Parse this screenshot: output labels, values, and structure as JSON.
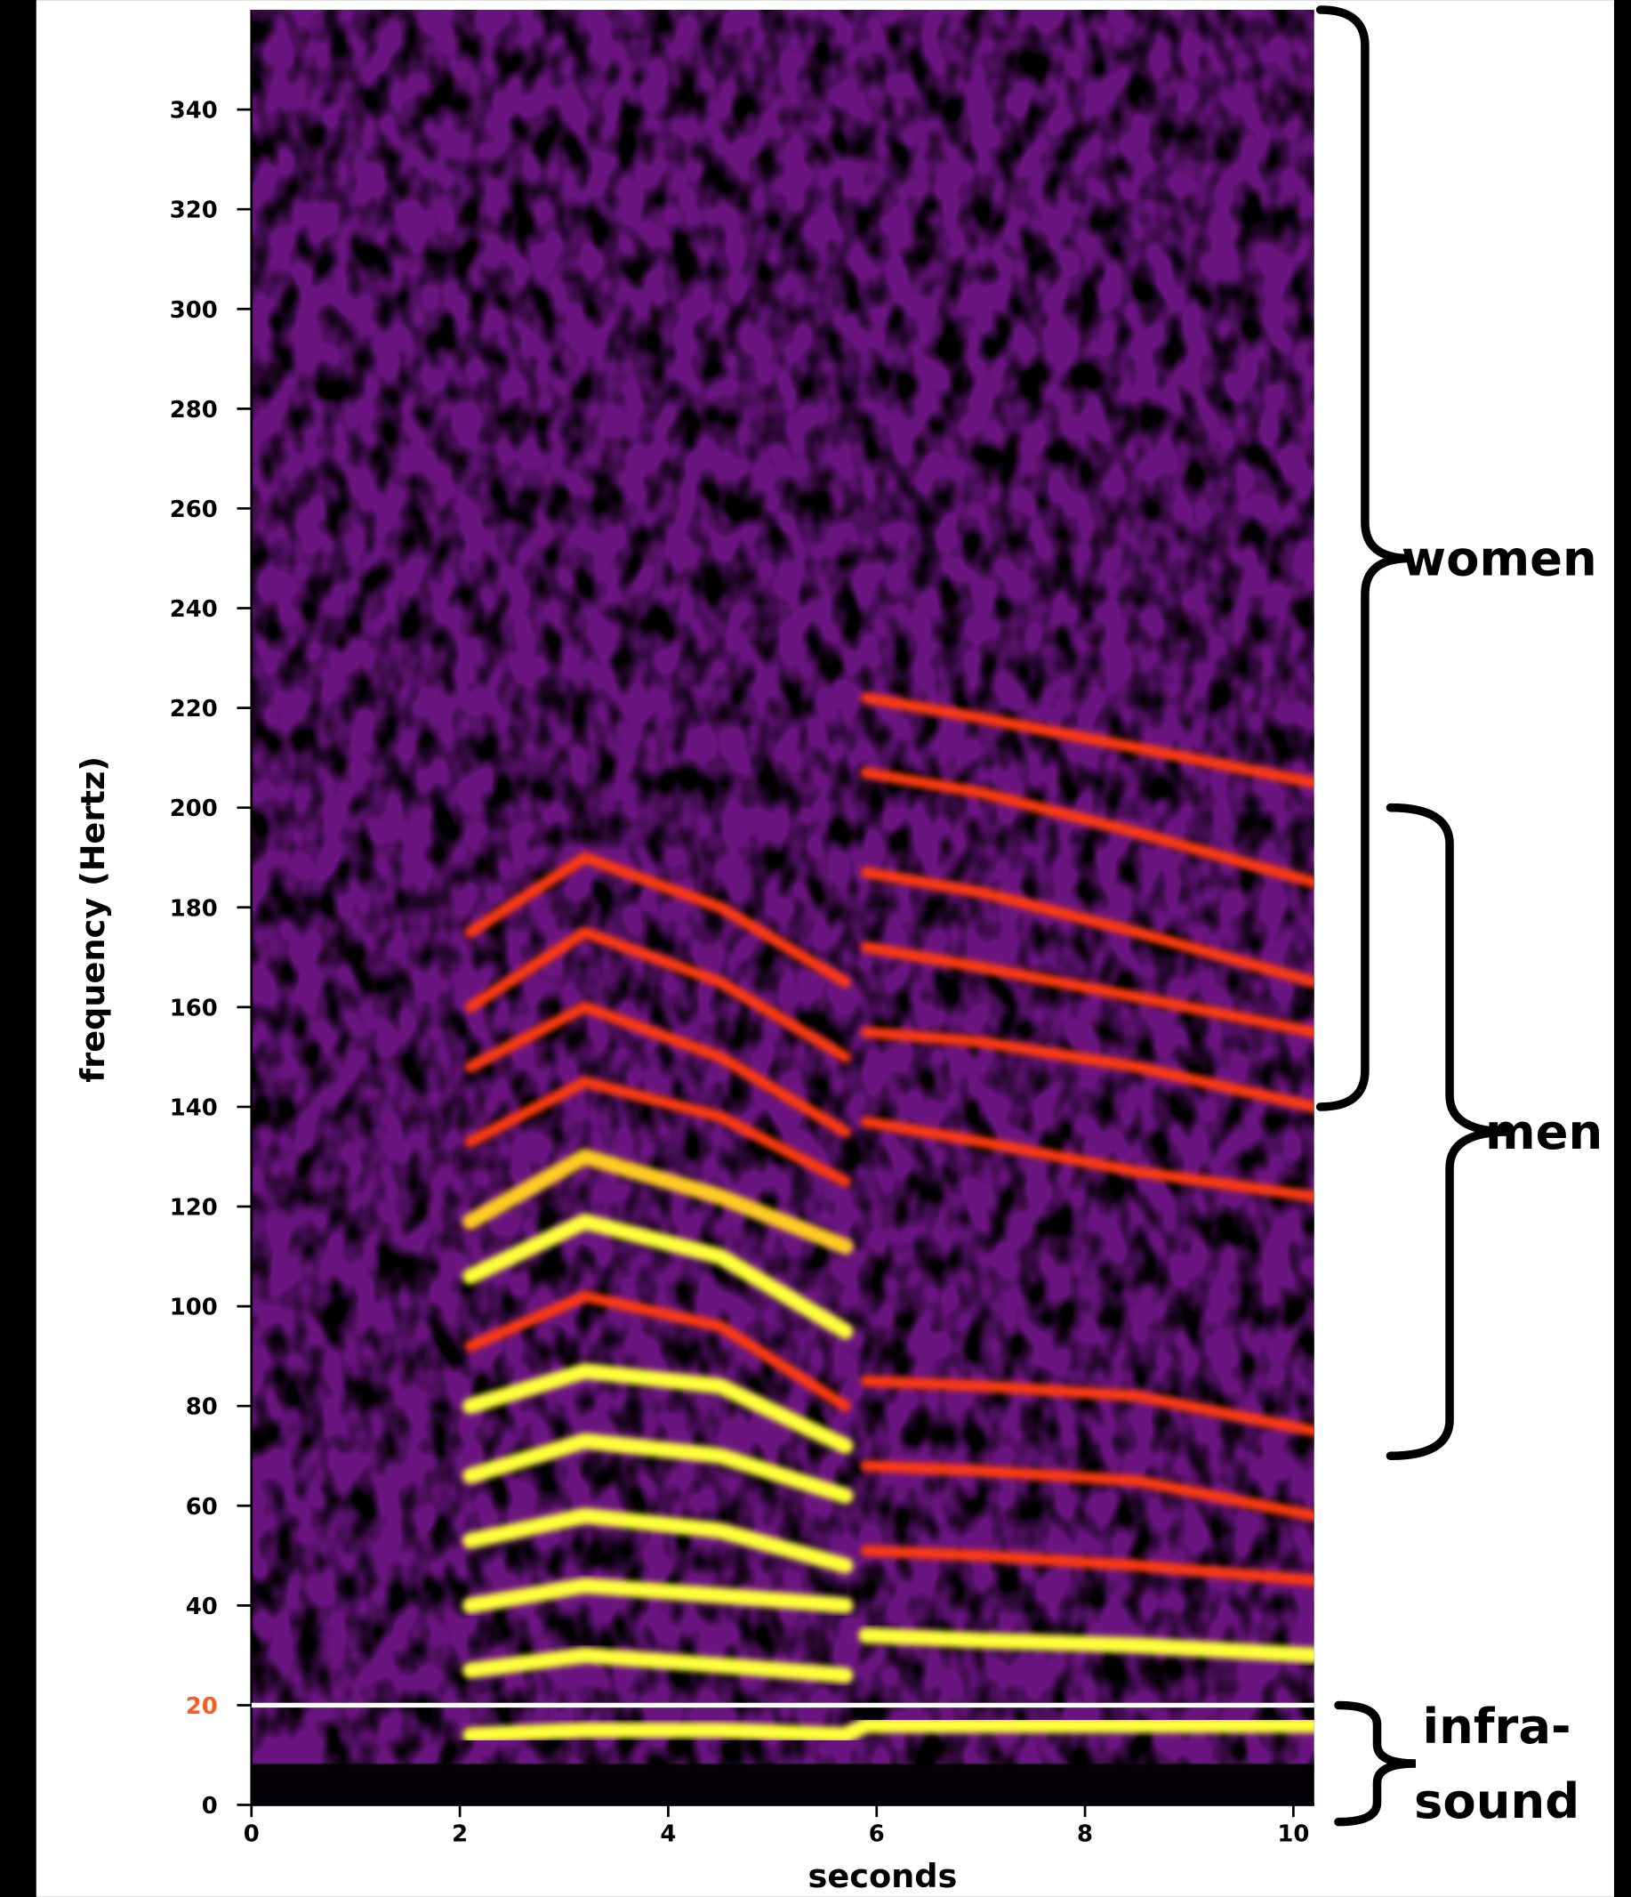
{
  "chart_data": {
    "type": "spectrogram",
    "x_label": "seconds",
    "y_label": "frequency (Hertz)",
    "xlim": [
      0,
      10.2
    ],
    "ylim": [
      0,
      360
    ],
    "xticks": [
      0,
      2,
      4,
      6,
      8,
      10
    ],
    "yticks": [
      0,
      20,
      40,
      60,
      80,
      100,
      120,
      140,
      160,
      180,
      200,
      220,
      240,
      260,
      280,
      300,
      320,
      340
    ],
    "reference_line": {
      "value": 20,
      "color": "#ffffff",
      "label_color": "#ff5a1f"
    },
    "x": [
      2.1,
      3.2,
      4.5,
      5.7,
      5.9,
      7,
      8.5,
      10.2
    ],
    "series": [
      {
        "color": "#ffff3a",
        "values": [
          14,
          15,
          15,
          14,
          16,
          16,
          16,
          16
        ]
      },
      {
        "color": "#ffff3a",
        "values": [
          27,
          30,
          28,
          26,
          null,
          null,
          null,
          null
        ]
      },
      {
        "color": "#ffff3a",
        "values": [
          40,
          44,
          42,
          40,
          null,
          null,
          null,
          null
        ]
      },
      {
        "color": "#ffff3a",
        "values": [
          53,
          58,
          55,
          48,
          null,
          null,
          null,
          null
        ]
      },
      {
        "color": "#ffff3a",
        "values": [
          66,
          73,
          70,
          62,
          null,
          null,
          null,
          null
        ]
      },
      {
        "color": "#ffff3a",
        "values": [
          80,
          87,
          84,
          72,
          null,
          null,
          null,
          null
        ]
      },
      {
        "color": "#ff3a10",
        "values": [
          92,
          102,
          96,
          80,
          null,
          null,
          null,
          null
        ]
      },
      {
        "color": "#ffff3a",
        "values": [
          106,
          117,
          110,
          95,
          null,
          null,
          null,
          null
        ]
      },
      {
        "color": "#ffcc20",
        "values": [
          117,
          130,
          122,
          112,
          null,
          null,
          null,
          null
        ]
      },
      {
        "color": "#ff3a10",
        "values": [
          133,
          145,
          138,
          125,
          null,
          null,
          null,
          null
        ]
      },
      {
        "color": "#ff3a10",
        "values": [
          148,
          160,
          150,
          135,
          null,
          null,
          null,
          null
        ]
      },
      {
        "color": "#ff3a10",
        "values": [
          160,
          175,
          165,
          150,
          null,
          null,
          null,
          null
        ]
      },
      {
        "color": "#ff3a10",
        "values": [
          175,
          190,
          180,
          165,
          null,
          null,
          null,
          null
        ]
      },
      {
        "color": "#ffff3a",
        "values": [
          null,
          null,
          null,
          null,
          34,
          33,
          32,
          30
        ]
      },
      {
        "color": "#ff3a10",
        "values": [
          null,
          null,
          null,
          null,
          51,
          50,
          48,
          45
        ]
      },
      {
        "color": "#ff3a10",
        "values": [
          null,
          null,
          null,
          null,
          68,
          67,
          65,
          58
        ]
      },
      {
        "color": "#ff3a10",
        "values": [
          null,
          null,
          null,
          null,
          85,
          84,
          82,
          75
        ]
      },
      {
        "color": "#ff3a10",
        "values": [
          null,
          null,
          null,
          null,
          137,
          133,
          127,
          122
        ]
      },
      {
        "color": "#ff3a10",
        "values": [
          null,
          null,
          null,
          null,
          155,
          153,
          148,
          140
        ]
      },
      {
        "color": "#ff3a10",
        "values": [
          null,
          null,
          null,
          null,
          172,
          168,
          162,
          155
        ]
      },
      {
        "color": "#ff3a10",
        "values": [
          null,
          null,
          null,
          null,
          187,
          183,
          175,
          165
        ]
      },
      {
        "color": "#ff3a10",
        "values": [
          null,
          null,
          null,
          null,
          207,
          203,
          195,
          185
        ]
      },
      {
        "color": "#ff3a10",
        "values": [
          null,
          null,
          null,
          null,
          222,
          218,
          212,
          205
        ]
      }
    ],
    "ranges": [
      {
        "lines": [
          "women"
        ],
        "from": 140,
        "to": 360
      },
      {
        "lines": [
          "men"
        ],
        "from": 70,
        "to": 200
      },
      {
        "lines": [
          "infra-",
          "sound"
        ],
        "from": 0,
        "to": 20
      }
    ]
  }
}
